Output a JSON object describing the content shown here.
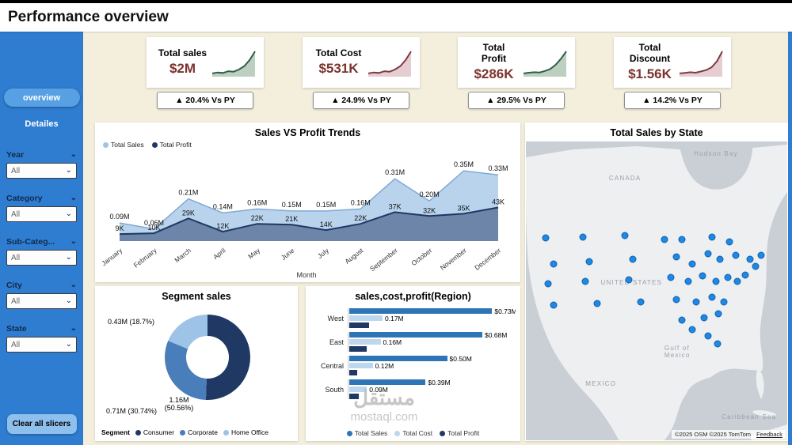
{
  "header": {
    "title": "Performance overview"
  },
  "sidebar": {
    "nav": [
      {
        "label": "overview"
      },
      {
        "label": "Detailes"
      }
    ],
    "slicers": [
      {
        "label": "Year",
        "value": "All"
      },
      {
        "label": "Category",
        "value": "All"
      },
      {
        "label": "Sub-Categ...",
        "value": "All"
      },
      {
        "label": "City",
        "value": "All"
      },
      {
        "label": "State",
        "value": "All"
      }
    ],
    "clear_button": "Clear all slicers"
  },
  "kpis": [
    {
      "title": "Total sales",
      "value": "$2M",
      "delta": "▲ 20.4% Vs PY",
      "spark_color": "#2e5f45",
      "spark_fill": "#bccfc0",
      "spark": [
        1,
        1.4,
        1.2,
        1.9,
        1.7,
        2.6,
        4,
        6.5,
        10
      ]
    },
    {
      "title": "Total Cost",
      "value": "$531K",
      "delta": "▲ 24.9% Vs PY",
      "spark_color": "#7d3b45",
      "spark_fill": "#e6cdd2",
      "spark": [
        1,
        1.4,
        1.2,
        1.9,
        1.7,
        2.6,
        4,
        6.5,
        10
      ]
    },
    {
      "title": "Total\nProfit",
      "value": "$286K",
      "delta": "▲ 29.5% Vs PY",
      "spark_color": "#2e5f45",
      "spark_fill": "#bccfc0",
      "spark": [
        1,
        1.3,
        1.5,
        1.4,
        2,
        2.8,
        4.5,
        7,
        10
      ]
    },
    {
      "title": "Total\nDiscount",
      "value": "$1.56K",
      "delta": "▲ 14.2% Vs PY",
      "spark_color": "#7d3b45",
      "spark_fill": "#e6cdd2",
      "spark": [
        1,
        1.2,
        1.5,
        1.3,
        1.8,
        2.4,
        3.5,
        6,
        10
      ]
    }
  ],
  "chart_data": [
    {
      "type": "area",
      "title": "Sales VS Profit Trends",
      "xlabel": "Month",
      "x": [
        "January",
        "February",
        "March",
        "April",
        "May",
        "June",
        "July",
        "August",
        "September",
        "October",
        "November",
        "December"
      ],
      "series": [
        {
          "name": "Total Sales",
          "color": "#9dc3e6",
          "unit": "M",
          "values": [
            0.09,
            0.06,
            0.21,
            0.14,
            0.16,
            0.15,
            0.15,
            0.16,
            0.31,
            0.2,
            0.35,
            0.33
          ],
          "labels": [
            "0.09M",
            "0.06M",
            "0.21M",
            "0.14M",
            "0.16M",
            "0.15M",
            "0.15M",
            "0.16M",
            "0.31M",
            "0.20M",
            "0.35M",
            "0.33M"
          ]
        },
        {
          "name": "Total Profit",
          "color": "#1f3864",
          "unit": "K",
          "values": [
            9,
            10,
            29,
            12,
            22,
            21,
            14,
            22,
            37,
            32,
            35,
            43
          ],
          "labels": [
            "9K",
            "10K",
            "29K",
            "12K",
            "22K",
            "21K",
            "14K",
            "22K",
            "37K",
            "32K",
            "35K",
            "43K"
          ]
        }
      ]
    },
    {
      "type": "pie",
      "title": "Segment sales",
      "legend_title": "Segment",
      "slices": [
        {
          "name": "Consumer",
          "label": "1.16M (50.56%)",
          "pct": 50.56,
          "color": "#1f3864"
        },
        {
          "name": "Corporate",
          "label": "0.71M (30.74%)",
          "pct": 30.74,
          "color": "#4a7ebb"
        },
        {
          "name": "Home Office",
          "label": "0.43M (18.7%)",
          "pct": 18.7,
          "color": "#9dc3e6"
        }
      ]
    },
    {
      "type": "bar",
      "title": "sales,cost,profit(Region)",
      "categories": [
        "West",
        "East",
        "Central",
        "South"
      ],
      "xlim": [
        0,
        0.85
      ],
      "series": [
        {
          "name": "Total Sales",
          "color": "#2e75b6",
          "values": [
            0.73,
            0.68,
            0.5,
            0.39
          ],
          "labels": [
            "$0.73M",
            "$0.68M",
            "$0.50M",
            "$0.39M"
          ]
        },
        {
          "name": "Total Cost",
          "color": "#bdd7ee",
          "values": [
            0.17,
            0.16,
            0.12,
            0.09
          ],
          "labels": [
            "0.17M",
            "0.16M",
            "0.12M",
            "0.09M"
          ]
        },
        {
          "name": "Total Profit",
          "color": "#1f3864",
          "values": [
            0.1,
            0.09,
            0.04,
            0.05
          ],
          "labels": [
            "",
            "",
            "",
            ""
          ]
        }
      ]
    },
    {
      "type": "scatter-map",
      "title": "Total Sales by State",
      "dot_color": "#1e88e5",
      "attribution": "©2025 OSM  ©2025 TomTom",
      "feedback_link": "Feedback",
      "labels": [
        {
          "text": "CANADA",
          "x": 33,
          "y": 11
        },
        {
          "text": "Hudson Bay",
          "x": 66,
          "y": 3
        },
        {
          "text": "UNITED STATES",
          "x": 31,
          "y": 46
        },
        {
          "text": "MEXICO",
          "x": 24,
          "y": 80
        },
        {
          "text": "Gulf of\nMexico",
          "x": 54,
          "y": 68
        },
        {
          "text": "Caribbean Sea",
          "x": 77,
          "y": 91
        }
      ],
      "dots": [
        [
          7.6,
          32.3
        ],
        [
          21.8,
          32.0
        ],
        [
          37.9,
          31.5
        ],
        [
          53.0,
          32.8
        ],
        [
          59.7,
          32.8
        ],
        [
          71.2,
          32.0
        ],
        [
          77.9,
          33.6
        ],
        [
          10.6,
          40.9
        ],
        [
          24.2,
          40.1
        ],
        [
          40.9,
          39.5
        ],
        [
          57.6,
          38.7
        ],
        [
          63.6,
          40.9
        ],
        [
          69.7,
          37.6
        ],
        [
          74.2,
          39.5
        ],
        [
          80.3,
          38.2
        ],
        [
          85.8,
          39.5
        ],
        [
          90.0,
          38.2
        ],
        [
          87.9,
          41.7
        ],
        [
          8.5,
          47.6
        ],
        [
          22.7,
          46.8
        ],
        [
          39.4,
          46.2
        ],
        [
          55.5,
          45.4
        ],
        [
          62.1,
          46.8
        ],
        [
          67.6,
          44.9
        ],
        [
          72.7,
          46.8
        ],
        [
          77.3,
          45.4
        ],
        [
          80.9,
          46.8
        ],
        [
          83.9,
          44.6
        ],
        [
          10.6,
          54.8
        ],
        [
          27.3,
          54.3
        ],
        [
          43.9,
          53.8
        ],
        [
          57.6,
          53.0
        ],
        [
          65.2,
          53.8
        ],
        [
          71.2,
          52.2
        ],
        [
          75.8,
          53.8
        ],
        [
          59.7,
          59.7
        ],
        [
          68.2,
          59.1
        ],
        [
          73.6,
          57.8
        ],
        [
          63.6,
          62.9
        ],
        [
          69.7,
          65.1
        ],
        [
          73.3,
          67.7
        ]
      ]
    }
  ],
  "watermark": {
    "line1": "مستقل",
    "line2": "mostaql.com"
  },
  "colors": {
    "sidebar": "#2f7dd1",
    "canvas": "#f4eedd",
    "kpi_value": "#7b332e",
    "accent_blue": "#2e75b6"
  }
}
